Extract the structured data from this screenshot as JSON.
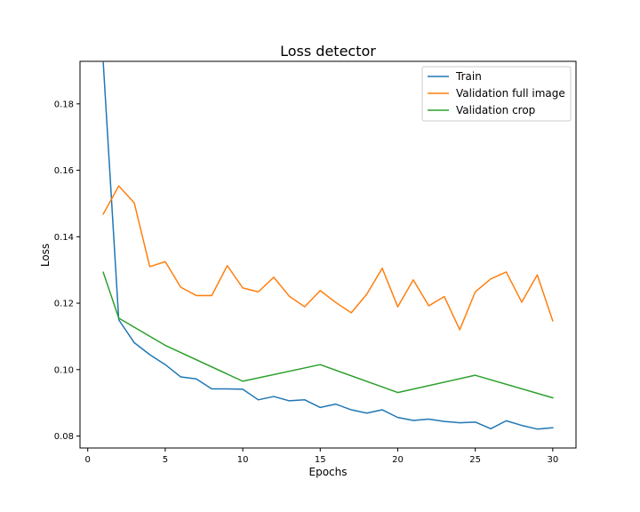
{
  "chart_data": {
    "type": "line",
    "title": "Loss detector",
    "xlabel": "Epochs",
    "ylabel": "Loss",
    "xlim": [
      -0.5,
      31.5
    ],
    "ylim": [
      0.0764,
      0.1928
    ],
    "xticks": [
      0,
      5,
      10,
      15,
      20,
      25,
      30
    ],
    "yticks": [
      0.08,
      0.1,
      0.12,
      0.14,
      0.16,
      0.18
    ],
    "ytick_labels": [
      "0.08",
      "0.10",
      "0.12",
      "0.14",
      "0.16",
      "0.18"
    ],
    "grid": false,
    "legend_position": "top-right",
    "series": [
      {
        "name": "Train",
        "color": "#1f77b4",
        "x": [
          1,
          2,
          3,
          4,
          5,
          6,
          7,
          8,
          9,
          10,
          11,
          12,
          13,
          14,
          15,
          16,
          17,
          18,
          19,
          20,
          21,
          22,
          23,
          24,
          25,
          26,
          27,
          28,
          29,
          30
        ],
        "y": [
          0.1924,
          0.115,
          0.1081,
          0.1045,
          0.1015,
          0.0978,
          0.0972,
          0.0942,
          0.0942,
          0.0941,
          0.0909,
          0.0919,
          0.0906,
          0.0909,
          0.0886,
          0.0896,
          0.0879,
          0.0869,
          0.0879,
          0.0856,
          0.0847,
          0.0851,
          0.0844,
          0.084,
          0.0842,
          0.0822,
          0.0846,
          0.0832,
          0.0821,
          0.0825
        ]
      },
      {
        "name": "Validation full image",
        "color": "#ff7f0e",
        "x": [
          1,
          2,
          3,
          4,
          5,
          6,
          7,
          8,
          9,
          10,
          11,
          12,
          13,
          14,
          15,
          16,
          17,
          18,
          19,
          20,
          21,
          22,
          23,
          24,
          25,
          26,
          27,
          28,
          29,
          30
        ],
        "y": [
          0.1468,
          0.1553,
          0.1502,
          0.131,
          0.1325,
          0.1248,
          0.1223,
          0.1223,
          0.1313,
          0.1246,
          0.1234,
          0.1278,
          0.1221,
          0.1189,
          0.1238,
          0.1202,
          0.1171,
          0.1227,
          0.1305,
          0.1189,
          0.127,
          0.1192,
          0.122,
          0.112,
          0.1234,
          0.1273,
          0.1294,
          0.1203,
          0.1285,
          0.1147
        ]
      },
      {
        "name": "Validation crop",
        "color": "#2ca02c",
        "x": [
          1,
          2,
          5,
          10,
          15,
          20,
          25,
          30
        ],
        "y": [
          0.1293,
          0.1155,
          0.1073,
          0.0965,
          0.1015,
          0.0931,
          0.0983,
          0.0915
        ]
      }
    ]
  }
}
